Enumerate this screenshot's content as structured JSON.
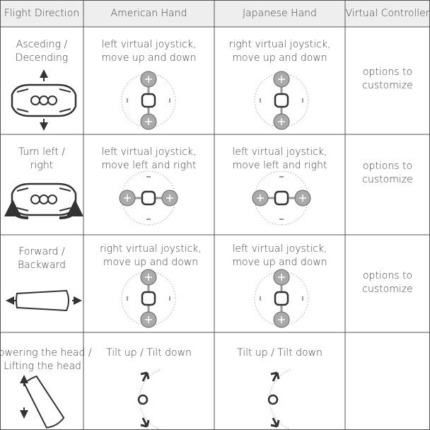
{
  "table": {
    "header": [
      "Flight Direction",
      "American Hand",
      "Japanese Hand",
      "Virtual Controller"
    ],
    "rows": [
      [
        "Asceding / Decending",
        "left virtual joystick, move up and down",
        "right virtual joystick, move up and down",
        "options to customize"
      ],
      [
        "Turn left / right",
        "left virtual joystick, move left and right",
        "left virtual joystick, move left and right",
        "options to customize"
      ],
      [
        "Forward / Backward",
        "right virtual joystick, move up and down",
        "left virtual joystick, move up and down",
        "options to customize"
      ],
      [
        "Lowering the head / Lifting the head",
        "Tilt up / Tilt down",
        "Tilt up / Tilt down",
        ""
      ]
    ]
  }
}
